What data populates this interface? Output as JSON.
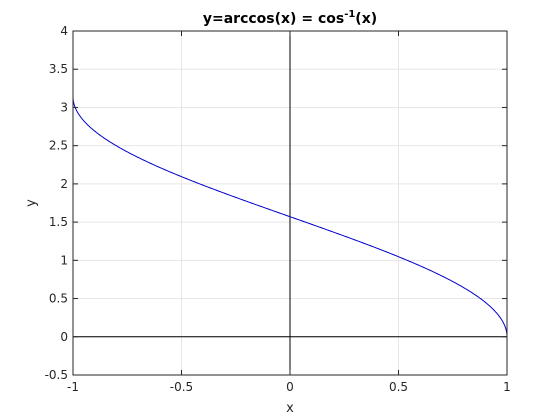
{
  "chart_data": {
    "type": "line",
    "title": {
      "text": "y=arccos(x) = cos",
      "sup": "-1",
      "suffix": "(x)"
    },
    "xlabel": "x",
    "ylabel": "y",
    "xlim": [
      -1,
      1
    ],
    "ylim": [
      -0.5,
      4
    ],
    "xticks": [
      -1,
      -0.5,
      0,
      0.5,
      1
    ],
    "xtick_labels": [
      "-1",
      "-0.5",
      "0",
      "0.5",
      "1"
    ],
    "yticks": [
      -0.5,
      0,
      0.5,
      1,
      1.5,
      2,
      2.5,
      3,
      3.5,
      4
    ],
    "ytick_labels": [
      "-0.5",
      "0",
      "0.5",
      "1",
      "1.5",
      "2",
      "2.5",
      "3",
      "3.5",
      "4"
    ],
    "grid": true,
    "series": [
      {
        "function": "arccos",
        "color": "#0000cc",
        "x_start": -1,
        "x_end": 1,
        "samples": 400
      }
    ],
    "reference_lines": [
      {
        "axis": "x",
        "value": 0,
        "color": "#000000"
      },
      {
        "axis": "y",
        "value": 0,
        "color": "#000000"
      }
    ]
  }
}
